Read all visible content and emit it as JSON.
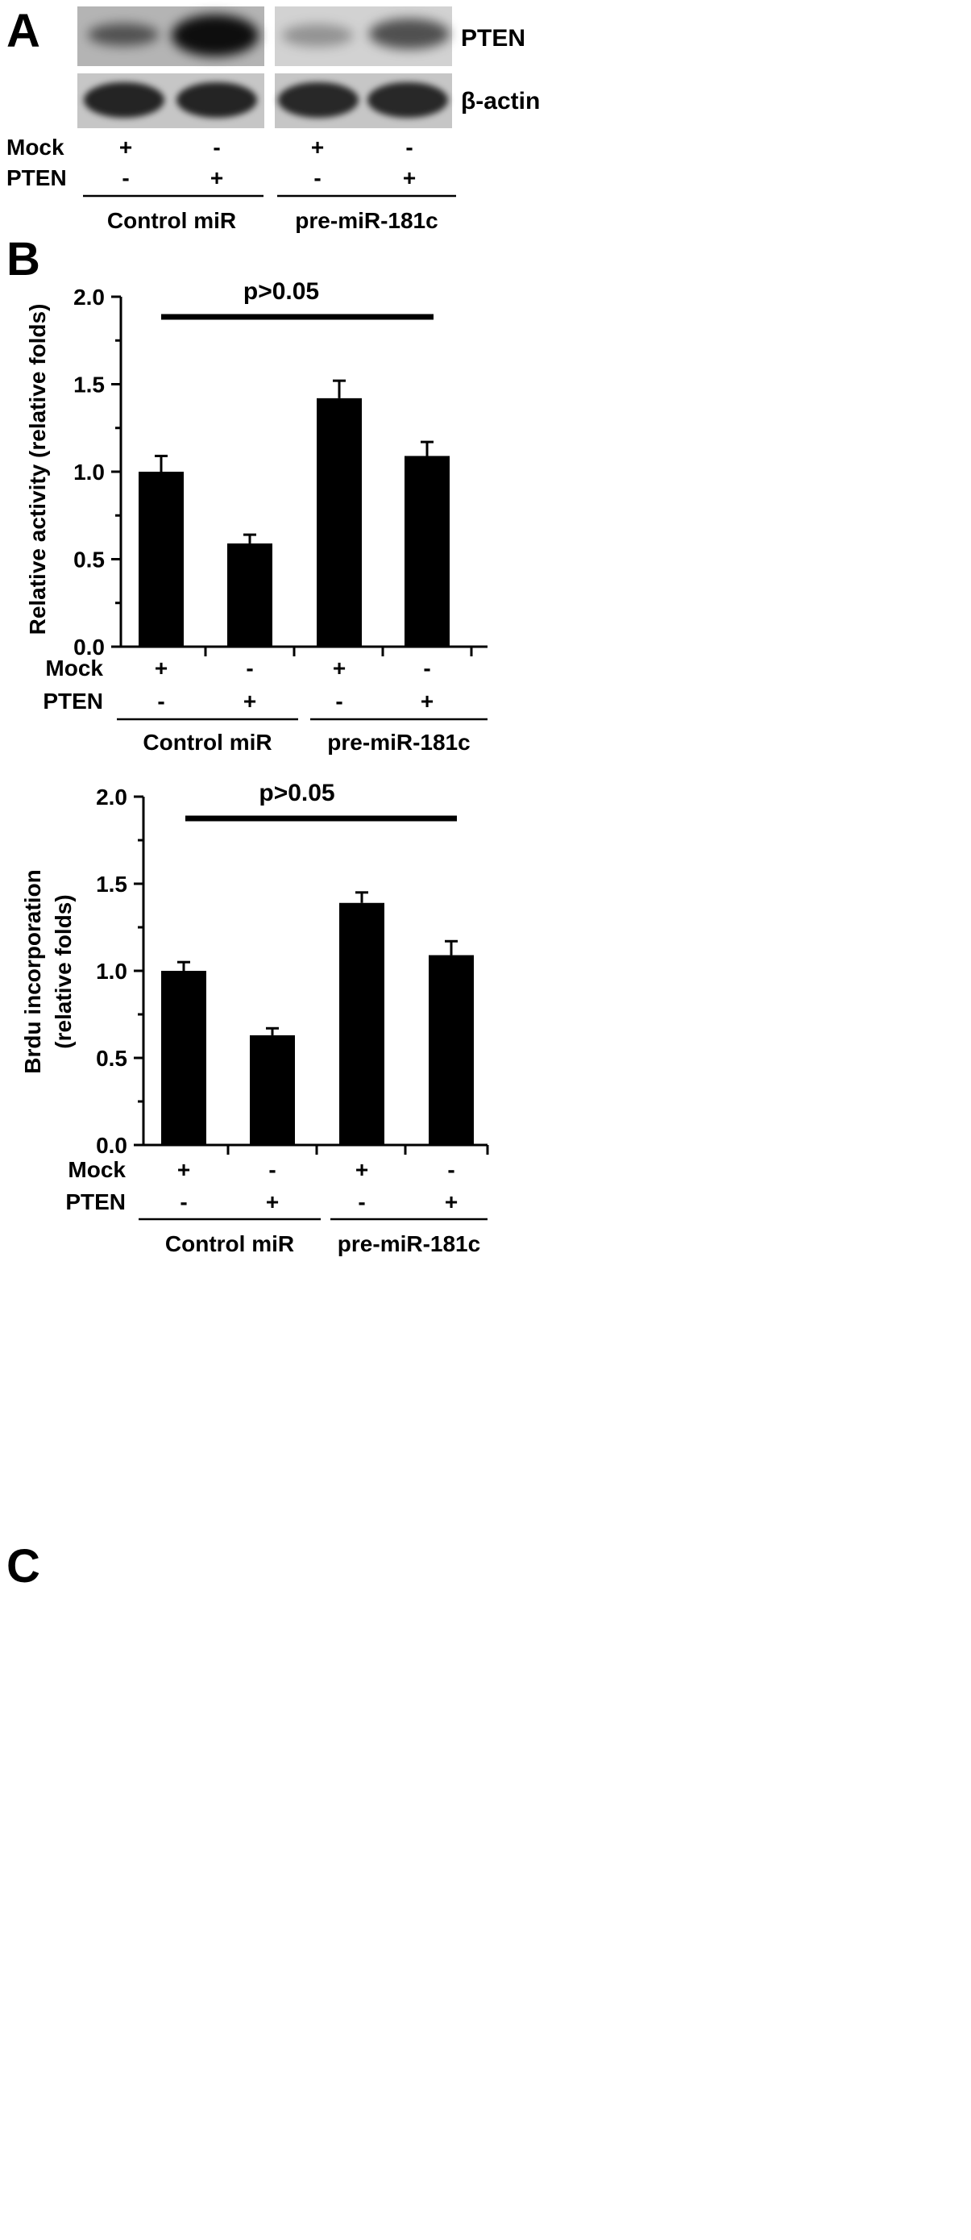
{
  "panels": {
    "a": {
      "letter": "A",
      "blot_labels": [
        "PTEN",
        "β-actin"
      ],
      "conditions": [
        {
          "label": "Mock",
          "signs": [
            "+",
            "-",
            "+",
            "-"
          ]
        },
        {
          "label": "PTEN",
          "signs": [
            "-",
            "+",
            "-",
            "+"
          ]
        }
      ],
      "groups": [
        "Control miR",
        "pre-miR-181c"
      ],
      "band_intensity": {
        "PTEN": [
          0.55,
          0.92,
          0.3,
          0.62
        ],
        "beta_actin": [
          0.82,
          0.82,
          0.8,
          0.8
        ]
      }
    },
    "b": {
      "letter": "B"
    },
    "c": {
      "letter": "C"
    }
  },
  "chart_data": [
    {
      "type": "bar",
      "panel": "B",
      "ylabel": "Relative activity (relative folds)",
      "ylim": [
        0,
        2.0
      ],
      "yticks": [
        "0.0",
        "0.5",
        "1.0",
        "1.5",
        "2.0"
      ],
      "values": [
        1.0,
        0.59,
        1.42,
        1.09
      ],
      "errors": [
        0.09,
        0.05,
        0.1,
        0.08
      ],
      "annotation": "p>0.05",
      "conditions": [
        {
          "label": "Mock",
          "signs": [
            "+",
            "-",
            "+",
            "-"
          ]
        },
        {
          "label": "PTEN",
          "signs": [
            "-",
            "+",
            "-",
            "+"
          ]
        }
      ],
      "groups": [
        "Control miR",
        "pre-miR-181c"
      ]
    },
    {
      "type": "bar",
      "panel": "C",
      "ylabel": [
        "Brdu incorporation",
        "(relative folds)"
      ],
      "ylim": [
        0,
        2.0
      ],
      "yticks": [
        "0.0",
        "0.5",
        "1.0",
        "1.5",
        "2.0"
      ],
      "values": [
        1.0,
        0.63,
        1.39,
        1.09
      ],
      "errors": [
        0.05,
        0.04,
        0.06,
        0.08
      ],
      "annotation": "p>0.05",
      "conditions": [
        {
          "label": "Mock",
          "signs": [
            "+",
            "-",
            "+",
            "-"
          ]
        },
        {
          "label": "PTEN",
          "signs": [
            "-",
            "+",
            "-",
            "+"
          ]
        }
      ],
      "groups": [
        "Control miR",
        "pre-miR-181c"
      ]
    }
  ]
}
